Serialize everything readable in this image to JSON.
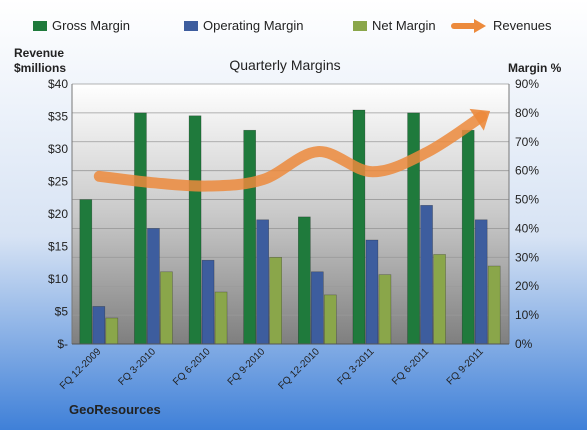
{
  "chart_data": {
    "type": "bar",
    "title": "Quarterly Margins",
    "company": "GeoResources",
    "left_axis_label_line1": "Revenue",
    "left_axis_label_line2": "$millions",
    "right_axis_label": "Margin %",
    "categories": [
      "FQ 12-2009",
      "FQ 3-2010",
      "FQ 6-2010",
      "FQ 9-2010",
      "FQ 12-2010",
      "FQ 3-2011",
      "FQ 6-2011",
      "FQ 9-2011"
    ],
    "left_axis": {
      "ylim": [
        0,
        40
      ],
      "ticks": [
        "$-",
        "$5",
        "$10",
        "$15",
        "$20",
        "$25",
        "$30",
        "$35",
        "$40"
      ]
    },
    "right_axis": {
      "ylim": [
        0,
        90
      ],
      "ticks": [
        "0%",
        "10%",
        "20%",
        "30%",
        "40%",
        "50%",
        "60%",
        "70%",
        "80%",
        "90%"
      ]
    },
    "series": [
      {
        "name": "Gross Margin",
        "axis": "right",
        "kind": "bar",
        "color": "#1f7a3c",
        "values": [
          50,
          80,
          79,
          74,
          44,
          81,
          80,
          74
        ]
      },
      {
        "name": "Operating Margin",
        "axis": "right",
        "kind": "bar",
        "color": "#3d5d9e",
        "values": [
          13,
          40,
          29,
          43,
          25,
          36,
          48,
          43
        ]
      },
      {
        "name": "Net Margin",
        "axis": "right",
        "kind": "bar",
        "color": "#8aa64a",
        "values": [
          9,
          25,
          18,
          30,
          17,
          24,
          31,
          27
        ]
      },
      {
        "name": "Revenues",
        "axis": "left",
        "kind": "line",
        "color": "#ec8a3c",
        "values": [
          25.8,
          24.8,
          24.3,
          25.3,
          29.6,
          26.5,
          29.5,
          35.0
        ]
      }
    ],
    "legend_position": "top",
    "grid": true
  }
}
